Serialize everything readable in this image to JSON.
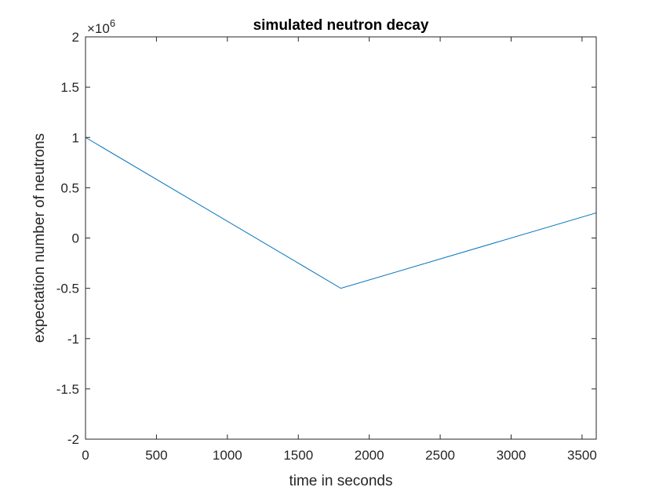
{
  "chart_data": {
    "type": "line",
    "title": "simulated neutron decay",
    "xlabel": "time in seconds",
    "ylabel": "expectation number of neutrons",
    "xlim": [
      0,
      3600
    ],
    "ylim": [
      -2,
      2
    ],
    "x_ticks": [
      0,
      500,
      1000,
      1500,
      2000,
      2500,
      3000,
      3500
    ],
    "y_ticks": [
      -2,
      -1.5,
      -1,
      -0.5,
      0,
      0.5,
      1,
      1.5,
      2
    ],
    "y_tick_labels": [
      "-2",
      "-1.5",
      "-1",
      "-0.5",
      "0",
      "0.5",
      "1",
      "1.5",
      "2"
    ],
    "y_exponent_base": "×10",
    "y_exponent_power": "6",
    "grid": false,
    "series": [
      {
        "color": "#0072BD",
        "x": [
          0,
          1800,
          3600
        ],
        "y": [
          1.0,
          -0.5,
          0.25
        ]
      }
    ]
  }
}
